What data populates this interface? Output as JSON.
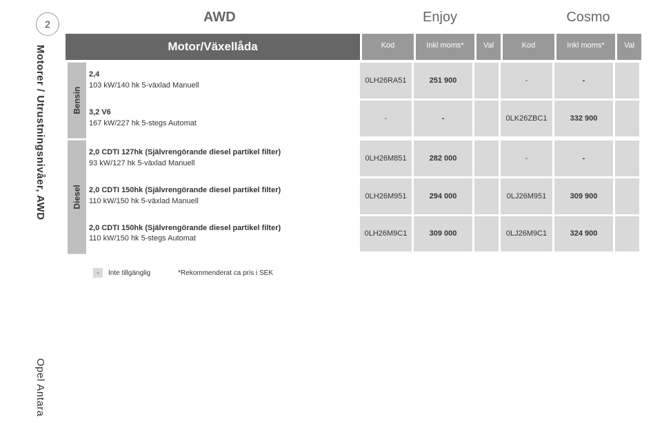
{
  "page_number": "2",
  "side_title": "Motorer / Utrustningsnivåer, AWD",
  "brand_title": "Opel Antara",
  "headers": {
    "awd": "AWD",
    "enjoy": "Enjoy",
    "cosmo": "Cosmo",
    "motor": "Motor/Växellåda",
    "kod": "Kod",
    "moms": "Inkl moms*",
    "val": "Val"
  },
  "fuel_groups": [
    {
      "label": "Bensin",
      "engines": [
        {
          "title": "2,4",
          "sub": "103 kW/140 hk 5-växlad Manuell",
          "enjoy_kod": "0LH26RA51",
          "enjoy_moms": "251 900",
          "enjoy_val": "",
          "cosmo_kod": "-",
          "cosmo_moms": "-",
          "cosmo_val": ""
        },
        {
          "title": "3,2 V6",
          "sub": "167 kW/227 hk 5-stegs Automat",
          "enjoy_kod": "-",
          "enjoy_moms": "-",
          "enjoy_val": "",
          "cosmo_kod": "0LK26ZBC1",
          "cosmo_moms": "332 900",
          "cosmo_val": ""
        }
      ]
    },
    {
      "label": "Diesel",
      "engines": [
        {
          "title": "2,0 CDTI 127hk (Självrengörande diesel partikel filter)",
          "sub": "93 kW/127 hk 5-växlad Manuell",
          "enjoy_kod": "0LH26M851",
          "enjoy_moms": "282 000",
          "enjoy_val": "",
          "cosmo_kod": "-",
          "cosmo_moms": "-",
          "cosmo_val": ""
        },
        {
          "title": "2,0 CDTI 150hk (Självrengörande diesel partikel filter)",
          "sub": "110 kW/150 hk 5-växlad Manuell",
          "enjoy_kod": "0LH26M951",
          "enjoy_moms": "294 000",
          "enjoy_val": "",
          "cosmo_kod": "0LJ26M951",
          "cosmo_moms": "309 900",
          "cosmo_val": ""
        },
        {
          "title": "2,0 CDTI 150hk (Självrengörande diesel partikel filter)",
          "sub": "110 kW/150 hk 5-stegs Automat",
          "enjoy_kod": "0LH26M9C1",
          "enjoy_moms": "309 000",
          "enjoy_val": "",
          "cosmo_kod": "0LJ26M9C1",
          "cosmo_moms": "324 900",
          "cosmo_val": ""
        }
      ]
    }
  ],
  "footnote": {
    "dash": "-",
    "unavailable": "Inte tillgänglig",
    "recommended": "*Rekommenderat ca pris i SEK"
  },
  "colors": {
    "darkgray": "#666666",
    "midgray": "#999999",
    "lightgray": "#d9d9d9",
    "labelgray": "#bfbfbf"
  }
}
